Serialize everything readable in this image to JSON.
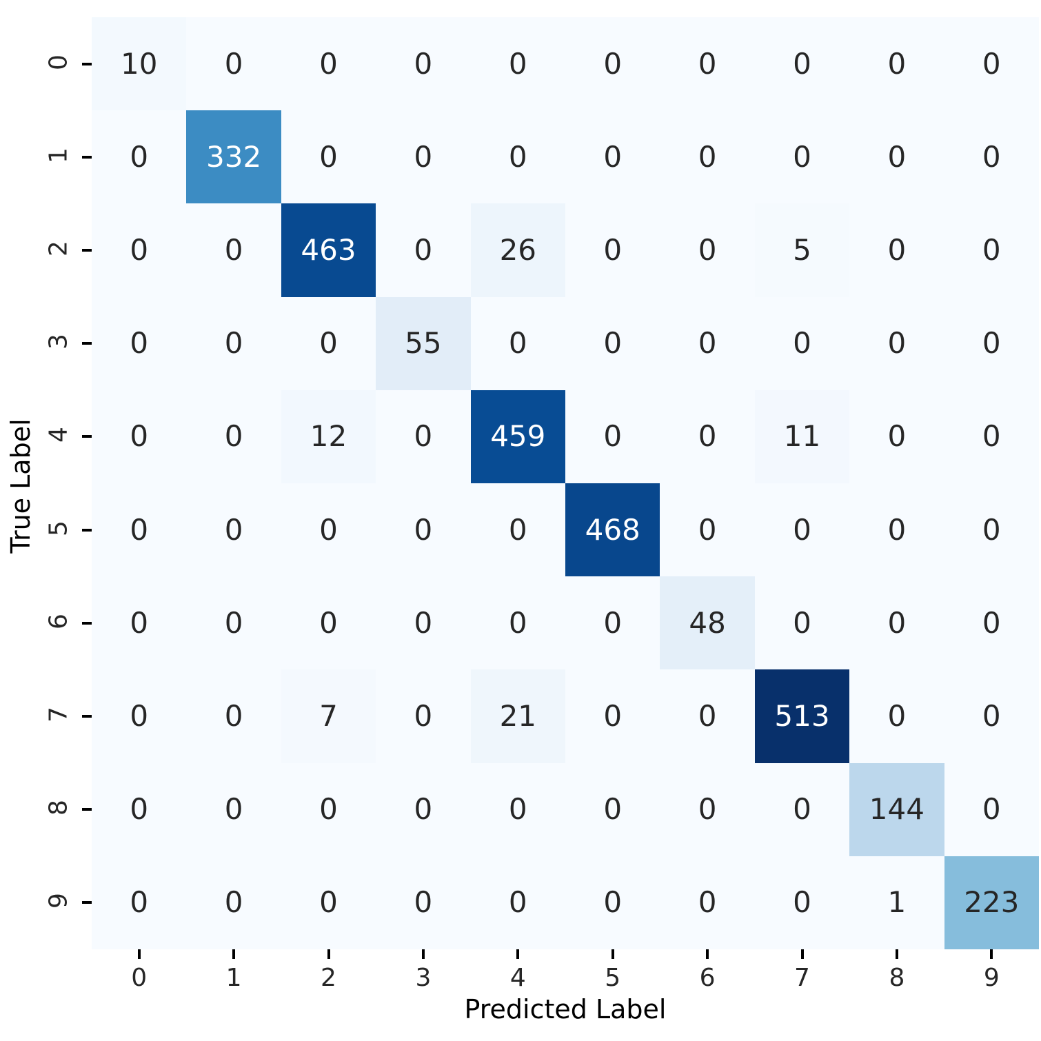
{
  "chart_data": {
    "type": "heatmap",
    "title": "",
    "xlabel": "Predicted Label",
    "ylabel": "True Label",
    "x_tick_labels": [
      "0",
      "1",
      "2",
      "3",
      "4",
      "5",
      "6",
      "7",
      "8",
      "9"
    ],
    "y_tick_labels": [
      "0",
      "1",
      "2",
      "3",
      "4",
      "5",
      "6",
      "7",
      "8",
      "9"
    ],
    "vmin": 0,
    "vmax": 513,
    "grid": false,
    "legend": "none",
    "colormap_name": "Blues",
    "colormap_anchors": [
      "#f7fbff",
      "#deebf7",
      "#c6dbef",
      "#9ecae1",
      "#6baed6",
      "#4292c6",
      "#2171b5",
      "#08519c",
      "#08306b"
    ],
    "annotation_color_light_bg": "#262626",
    "annotation_color_dark_bg": "#ffffff",
    "tick_color": "#000000",
    "matrix": [
      [
        10,
        0,
        0,
        0,
        0,
        0,
        0,
        0,
        0,
        0
      ],
      [
        0,
        332,
        0,
        0,
        0,
        0,
        0,
        0,
        0,
        0
      ],
      [
        0,
        0,
        463,
        0,
        26,
        0,
        0,
        5,
        0,
        0
      ],
      [
        0,
        0,
        0,
        55,
        0,
        0,
        0,
        0,
        0,
        0
      ],
      [
        0,
        0,
        12,
        0,
        459,
        0,
        0,
        11,
        0,
        0
      ],
      [
        0,
        0,
        0,
        0,
        0,
        468,
        0,
        0,
        0,
        0
      ],
      [
        0,
        0,
        0,
        0,
        0,
        0,
        48,
        0,
        0,
        0
      ],
      [
        0,
        0,
        7,
        0,
        21,
        0,
        0,
        513,
        0,
        0
      ],
      [
        0,
        0,
        0,
        0,
        0,
        0,
        0,
        0,
        144,
        0
      ],
      [
        0,
        0,
        0,
        0,
        0,
        0,
        0,
        0,
        1,
        223
      ]
    ]
  }
}
